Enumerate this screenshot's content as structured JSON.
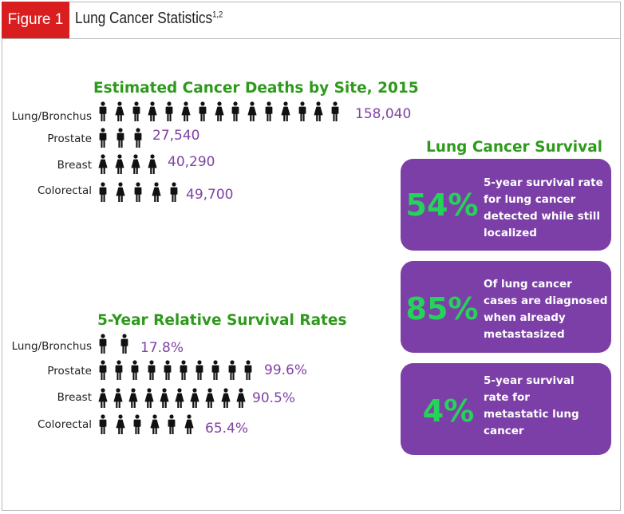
{
  "header": {
    "tag": "Figure 1",
    "title": "Lung Cancer Statistics",
    "title_sup": "1,2"
  },
  "chart_data": [
    {
      "type": "bar",
      "title": "Estimated Cancer Deaths by Site, 2015",
      "categories": [
        "Lung/Bronchus",
        "Prostate",
        "Breast",
        "Colorectal"
      ],
      "values": [
        158040,
        27540,
        40290,
        49700
      ],
      "value_labels": [
        "158,040",
        "27,540",
        "40,290",
        "49,700"
      ],
      "icon_counts": [
        15,
        3,
        4,
        5
      ],
      "icon_genders": [
        "mixed",
        "male",
        "female",
        "mixed"
      ]
    },
    {
      "type": "bar",
      "title": "5-Year Relative Survival Rates",
      "categories": [
        "Lung/Bronchus",
        "Prostate",
        "Breast",
        "Colorectal"
      ],
      "values": [
        17.8,
        99.6,
        90.5,
        65.4
      ],
      "value_labels": [
        "17.8%",
        "99.6%",
        "90.5%",
        "65.4%"
      ],
      "icon_counts": [
        2,
        10,
        10,
        6
      ],
      "icon_genders": [
        "male",
        "male",
        "female",
        "mixed"
      ]
    }
  ],
  "survival": {
    "title": "Lung Cancer Survival",
    "boxes": [
      {
        "pct": "54%",
        "lines": [
          "5-year survival rate",
          "for lung cancer",
          "detected while still",
          "localized"
        ]
      },
      {
        "pct": "85%",
        "lines": [
          "Of lung cancer",
          "cases are diagnosed",
          "when already",
          "metastasized"
        ]
      },
      {
        "pct": "4%",
        "lines": [
          "5-year survival",
          "rate for",
          "metastatic lung",
          "cancer"
        ]
      }
    ]
  },
  "colors": {
    "tag": "#d81e1e",
    "title_green": "#2e9a1c",
    "value_purple": "#8042a4",
    "box_purple": "#7c3fa7",
    "pct_green": "#25d35a",
    "icon": "#111111"
  }
}
